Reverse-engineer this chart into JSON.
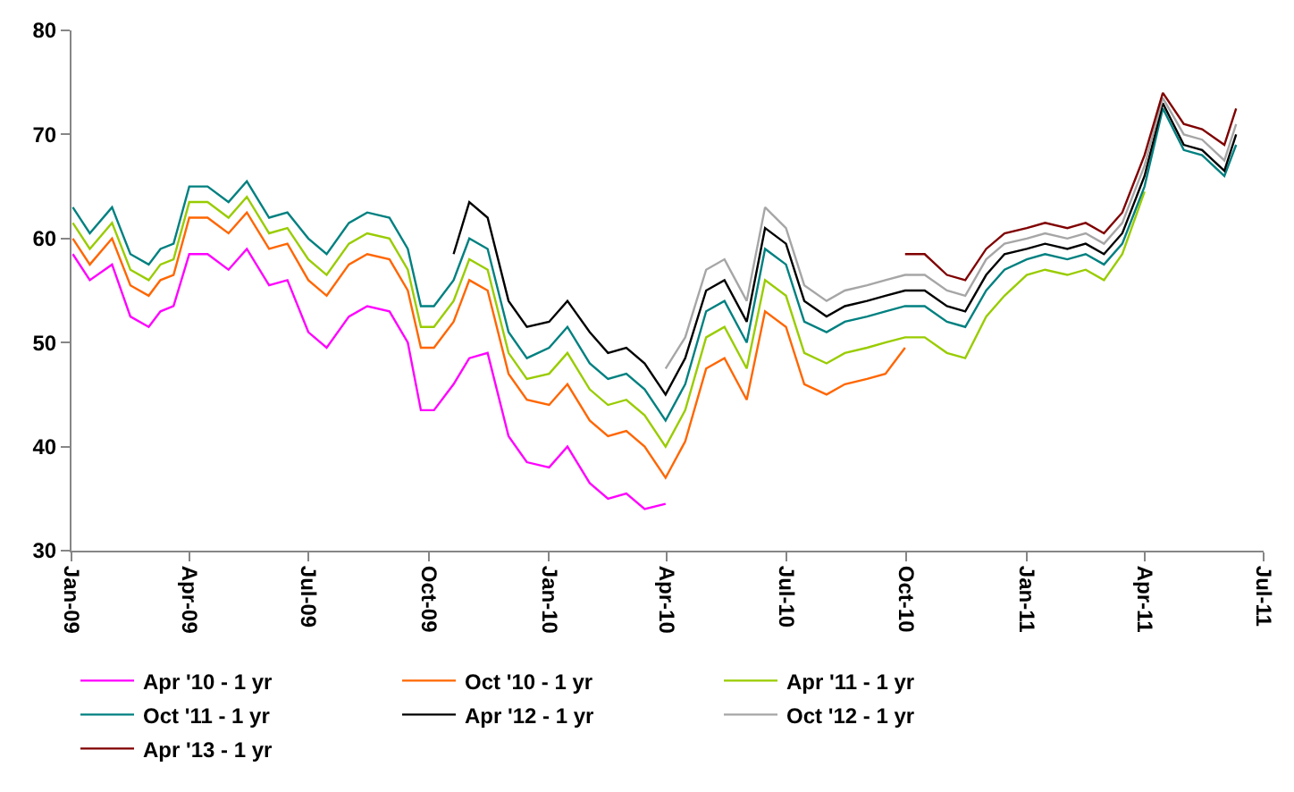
{
  "chart_data": {
    "type": "line",
    "x": [
      "2009-01-02",
      "2009-01-15",
      "2009-02-01",
      "2009-02-15",
      "2009-03-01",
      "2009-03-10",
      "2009-03-20",
      "2009-04-01",
      "2009-04-15",
      "2009-05-01",
      "2009-05-15",
      "2009-06-01",
      "2009-06-15",
      "2009-07-01",
      "2009-07-15",
      "2009-08-01",
      "2009-08-15",
      "2009-09-01",
      "2009-09-15",
      "2009-09-25",
      "2009-10-05",
      "2009-10-20",
      "2009-11-01",
      "2009-11-15",
      "2009-12-01",
      "2009-12-15",
      "2010-01-01",
      "2010-01-15",
      "2010-02-01",
      "2010-02-15",
      "2010-03-01",
      "2010-03-15",
      "2010-03-31",
      "2010-04-15",
      "2010-05-01",
      "2010-05-15",
      "2010-06-01",
      "2010-06-15",
      "2010-07-01",
      "2010-07-15",
      "2010-08-01",
      "2010-08-15",
      "2010-09-01",
      "2010-09-15",
      "2010-09-30",
      "2010-10-15",
      "2010-11-01",
      "2010-11-15",
      "2010-12-01",
      "2010-12-15",
      "2011-01-01",
      "2011-01-15",
      "2011-02-01",
      "2011-02-15",
      "2011-03-01",
      "2011-03-15",
      "2011-04-01",
      "2011-04-15",
      "2011-05-01",
      "2011-05-15",
      "2011-06-01",
      "2011-06-10"
    ],
    "series": [
      {
        "name": "Apr '10 - 1 yr",
        "color": "#ff00ff",
        "values": [
          58.5,
          56,
          57.5,
          52.5,
          51.5,
          53,
          53.5,
          58.5,
          58.5,
          57,
          59,
          55.5,
          56,
          51,
          49.5,
          52.5,
          53.5,
          53,
          50,
          43.5,
          43.5,
          46,
          48.5,
          49,
          41,
          38.5,
          38,
          40,
          36.5,
          35,
          35.5,
          34,
          34.5,
          null,
          null,
          null,
          null,
          null,
          null,
          null,
          null,
          null,
          null,
          null,
          null,
          null,
          null,
          null,
          null,
          null,
          null,
          null,
          null,
          null,
          null,
          null,
          null,
          null,
          null,
          null,
          null,
          null
        ]
      },
      {
        "name": "Oct '10 - 1 yr",
        "color": "#ff6600",
        "values": [
          60,
          57.5,
          60,
          55.5,
          54.5,
          56,
          56.5,
          62,
          62,
          60.5,
          62.5,
          59,
          59.5,
          56,
          54.5,
          57.5,
          58.5,
          58,
          55,
          49.5,
          49.5,
          52,
          56,
          55,
          47,
          44.5,
          44,
          46,
          42.5,
          41,
          41.5,
          40,
          37,
          40.5,
          47.5,
          48.5,
          44.5,
          53,
          51.5,
          46,
          45,
          46,
          46.5,
          47,
          49.5,
          null,
          null,
          null,
          null,
          null,
          null,
          null,
          null,
          null,
          null,
          null,
          null,
          null,
          null,
          null,
          null,
          null
        ]
      },
      {
        "name": "Apr '11 - 1 yr",
        "color": "#99cc00",
        "values": [
          61.5,
          59,
          61.5,
          57,
          56,
          57.5,
          58,
          63.5,
          63.5,
          62,
          64,
          60.5,
          61,
          58,
          56.5,
          59.5,
          60.5,
          60,
          57,
          51.5,
          51.5,
          54,
          58,
          57,
          49,
          46.5,
          47,
          49,
          45.5,
          44,
          44.5,
          43,
          40,
          43.5,
          50.5,
          51.5,
          47.5,
          56,
          54.5,
          49,
          48,
          49,
          49.5,
          50,
          50.5,
          50.5,
          49,
          48.5,
          52.5,
          54.5,
          56.5,
          57,
          56.5,
          57,
          56,
          58.5,
          64.5,
          null,
          null,
          null,
          null,
          null
        ]
      },
      {
        "name": "Oct '11 - 1 yr",
        "color": "#008080",
        "values": [
          63,
          60.5,
          63,
          58.5,
          57.5,
          59,
          59.5,
          65,
          65,
          63.5,
          65.5,
          62,
          62.5,
          60,
          58.5,
          61.5,
          62.5,
          62,
          59,
          53.5,
          53.5,
          56,
          60,
          59,
          51,
          48.5,
          49.5,
          51.5,
          48,
          46.5,
          47,
          45.5,
          42.5,
          46,
          53,
          54,
          50,
          59,
          57.5,
          52,
          51,
          52,
          52.5,
          53,
          53.5,
          53.5,
          52,
          51.5,
          55,
          57,
          58,
          58.5,
          58,
          58.5,
          57.5,
          59.5,
          65,
          72.5,
          68.5,
          68,
          66,
          69
        ]
      },
      {
        "name": "Apr '12 - 1 yr",
        "color": "#000000",
        "values": [
          null,
          null,
          null,
          null,
          null,
          null,
          null,
          null,
          null,
          null,
          null,
          null,
          null,
          null,
          null,
          null,
          null,
          null,
          null,
          null,
          null,
          58.5,
          63.5,
          62,
          54,
          51.5,
          52,
          54,
          51,
          49,
          49.5,
          48,
          45,
          48.5,
          55,
          56,
          52,
          61,
          59.5,
          54,
          52.5,
          53.5,
          54,
          54.5,
          55,
          55,
          53.5,
          53,
          56.5,
          58.5,
          59,
          59.5,
          59,
          59.5,
          58.5,
          60.5,
          66,
          73,
          69,
          68.5,
          66.5,
          70
        ]
      },
      {
        "name": "Oct '12 - 1 yr",
        "color": "#a6a6a6",
        "values": [
          null,
          null,
          null,
          null,
          null,
          null,
          null,
          null,
          null,
          null,
          null,
          null,
          null,
          null,
          null,
          null,
          null,
          null,
          null,
          null,
          null,
          null,
          null,
          null,
          null,
          null,
          null,
          null,
          null,
          null,
          null,
          null,
          47.5,
          50.5,
          57,
          58,
          54,
          63,
          61,
          55.5,
          54,
          55,
          55.5,
          56,
          56.5,
          56.5,
          55,
          54.5,
          58,
          59.5,
          60,
          60.5,
          60,
          60.5,
          59.5,
          61.5,
          67,
          73.5,
          70,
          69.5,
          67.5,
          71
        ]
      },
      {
        "name": "Apr '13 - 1 yr",
        "color": "#800000",
        "values": [
          null,
          null,
          null,
          null,
          null,
          null,
          null,
          null,
          null,
          null,
          null,
          null,
          null,
          null,
          null,
          null,
          null,
          null,
          null,
          null,
          null,
          null,
          null,
          null,
          null,
          null,
          null,
          null,
          null,
          null,
          null,
          null,
          null,
          null,
          null,
          null,
          null,
          null,
          null,
          null,
          null,
          null,
          null,
          null,
          58.5,
          58.5,
          56.5,
          56,
          59,
          60.5,
          61,
          61.5,
          61,
          61.5,
          60.5,
          62.5,
          68,
          74,
          71,
          70.5,
          69,
          72.5
        ]
      }
    ],
    "xlim": [
      "2009-01-01",
      "2011-07-01"
    ],
    "xticks": [
      {
        "value": "2009-01-01",
        "label": "Jan-09"
      },
      {
        "value": "2009-04-01",
        "label": "Apr-09"
      },
      {
        "value": "2009-07-01",
        "label": "Jul-09"
      },
      {
        "value": "2009-10-01",
        "label": "Oct-09"
      },
      {
        "value": "2010-01-01",
        "label": "Jan-10"
      },
      {
        "value": "2010-04-01",
        "label": "Apr-10"
      },
      {
        "value": "2010-07-01",
        "label": "Jul-10"
      },
      {
        "value": "2010-10-01",
        "label": "Oct-10"
      },
      {
        "value": "2011-01-01",
        "label": "Jan-11"
      },
      {
        "value": "2011-04-01",
        "label": "Apr-11"
      },
      {
        "value": "2011-07-01",
        "label": "Jul-11"
      }
    ],
    "ylim": [
      30,
      80
    ],
    "yticks": [
      30,
      40,
      50,
      60,
      70,
      80
    ],
    "legend": "bottom",
    "marker": "none",
    "line_style": "solid"
  }
}
